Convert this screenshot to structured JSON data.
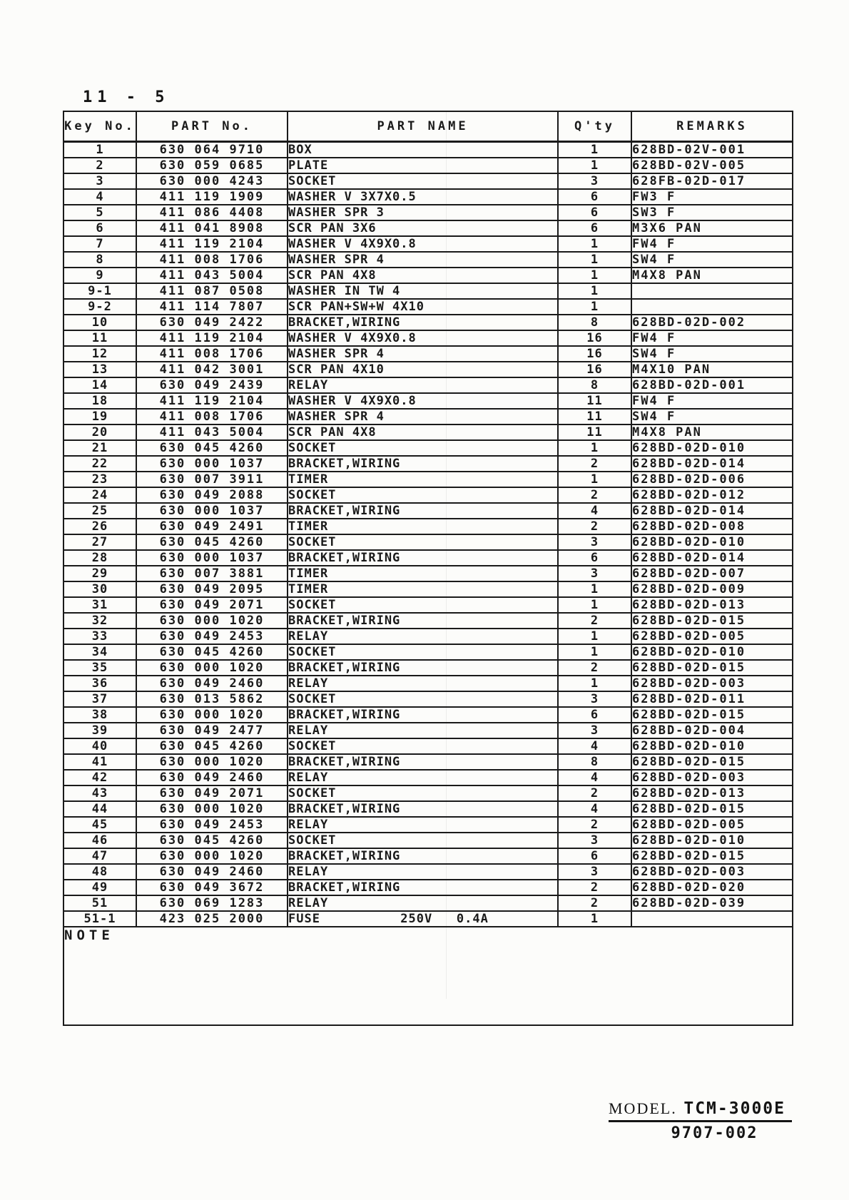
{
  "page": {
    "page_number": "11 - 5",
    "note_label": "NOTE",
    "footer": {
      "model_label": "MODEL.",
      "model_value": "TCM-3000E",
      "doc_number": "9707-002"
    },
    "ink_color": "#1a1a1a",
    "paper_color": "#fcfcfa"
  },
  "table": {
    "columns": [
      "Key No.",
      "PART No.",
      "PART NAME",
      "Q'ty",
      "REMARKS"
    ],
    "rows": [
      {
        "key": "1",
        "part_no": "630 064 9710",
        "part_name": "BOX",
        "qty": "1",
        "remarks": "628BD-02V-001"
      },
      {
        "key": "2",
        "part_no": "630 059 0685",
        "part_name": "PLATE",
        "qty": "1",
        "remarks": "628BD-02V-005"
      },
      {
        "key": "3",
        "part_no": "630 000 4243",
        "part_name": "SOCKET",
        "qty": "3",
        "remarks": "628FB-02D-017"
      },
      {
        "key": "4",
        "part_no": "411 119 1909",
        "part_name": "WASHER V 3X7X0.5",
        "qty": "6",
        "remarks": "FW3 F"
      },
      {
        "key": "5",
        "part_no": "411 086 4408",
        "part_name": "WASHER SPR 3",
        "qty": "6",
        "remarks": "SW3 F"
      },
      {
        "key": "6",
        "part_no": "411 041 8908",
        "part_name": "SCR PAN 3X6",
        "qty": "6",
        "remarks": "M3X6 PAN"
      },
      {
        "key": "7",
        "part_no": "411 119 2104",
        "part_name": "WASHER V 4X9X0.8",
        "qty": "1",
        "remarks": "FW4 F"
      },
      {
        "key": "8",
        "part_no": "411 008 1706",
        "part_name": "WASHER SPR 4",
        "qty": "1",
        "remarks": "SW4 F"
      },
      {
        "key": "9",
        "part_no": "411 043 5004",
        "part_name": "SCR PAN 4X8",
        "qty": "1",
        "remarks": "M4X8 PAN"
      },
      {
        "key": "9-1",
        "part_no": "411 087 0508",
        "part_name": "WASHER IN TW 4",
        "qty": "1",
        "remarks": ""
      },
      {
        "key": "9-2",
        "part_no": "411 114 7807",
        "part_name": "SCR PAN+SW+W 4X10",
        "qty": "1",
        "remarks": ""
      },
      {
        "key": "10",
        "part_no": "630 049 2422",
        "part_name": "BRACKET,WIRING",
        "qty": "8",
        "remarks": "628BD-02D-002"
      },
      {
        "key": "11",
        "part_no": "411 119 2104",
        "part_name": "WASHER V 4X9X0.8",
        "qty": "16",
        "remarks": "FW4 F"
      },
      {
        "key": "12",
        "part_no": "411 008 1706",
        "part_name": "WASHER SPR 4",
        "qty": "16",
        "remarks": "SW4 F"
      },
      {
        "key": "13",
        "part_no": "411 042 3001",
        "part_name": "SCR PAN 4X10",
        "qty": "16",
        "remarks": "M4X10 PAN"
      },
      {
        "key": "14",
        "part_no": "630 049 2439",
        "part_name": "RELAY",
        "qty": "8",
        "remarks": "628BD-02D-001"
      },
      {
        "key": "18",
        "part_no": "411 119 2104",
        "part_name": "WASHER V 4X9X0.8",
        "qty": "11",
        "remarks": "FW4 F"
      },
      {
        "key": "19",
        "part_no": "411 008 1706",
        "part_name": "WASHER SPR 4",
        "qty": "11",
        "remarks": "SW4 F"
      },
      {
        "key": "20",
        "part_no": "411 043 5004",
        "part_name": "SCR PAN 4X8",
        "qty": "11",
        "remarks": "M4X8 PAN"
      },
      {
        "key": "21",
        "part_no": "630 045 4260",
        "part_name": "SOCKET",
        "qty": "1",
        "remarks": "628BD-02D-010"
      },
      {
        "key": "22",
        "part_no": "630 000 1037",
        "part_name": "BRACKET,WIRING",
        "qty": "2",
        "remarks": "628BD-02D-014"
      },
      {
        "key": "23",
        "part_no": "630 007 3911",
        "part_name": "TIMER",
        "qty": "1",
        "remarks": "628BD-02D-006"
      },
      {
        "key": "24",
        "part_no": "630 049 2088",
        "part_name": "SOCKET",
        "qty": "2",
        "remarks": "628BD-02D-012"
      },
      {
        "key": "25",
        "part_no": "630 000 1037",
        "part_name": "BRACKET,WIRING",
        "qty": "4",
        "remarks": "628BD-02D-014"
      },
      {
        "key": "26",
        "part_no": "630 049 2491",
        "part_name": "TIMER",
        "qty": "2",
        "remarks": "628BD-02D-008"
      },
      {
        "key": "27",
        "part_no": "630 045 4260",
        "part_name": "SOCKET",
        "qty": "3",
        "remarks": "628BD-02D-010"
      },
      {
        "key": "28",
        "part_no": "630 000 1037",
        "part_name": "BRACKET,WIRING",
        "qty": "6",
        "remarks": "628BD-02D-014"
      },
      {
        "key": "29",
        "part_no": "630 007 3881",
        "part_name": "TIMER",
        "qty": "3",
        "remarks": "628BD-02D-007"
      },
      {
        "key": "30",
        "part_no": "630 049 2095",
        "part_name": "TIMER",
        "qty": "1",
        "remarks": "628BD-02D-009"
      },
      {
        "key": "31",
        "part_no": "630 049 2071",
        "part_name": "SOCKET",
        "qty": "1",
        "remarks": "628BD-02D-013"
      },
      {
        "key": "32",
        "part_no": "630 000 1020",
        "part_name": "BRACKET,WIRING",
        "qty": "2",
        "remarks": "628BD-02D-015"
      },
      {
        "key": "33",
        "part_no": "630 049 2453",
        "part_name": "RELAY",
        "qty": "1",
        "remarks": "628BD-02D-005"
      },
      {
        "key": "34",
        "part_no": "630 045 4260",
        "part_name": "SOCKET",
        "qty": "1",
        "remarks": "628BD-02D-010"
      },
      {
        "key": "35",
        "part_no": "630 000 1020",
        "part_name": "BRACKET,WIRING",
        "qty": "2",
        "remarks": "628BD-02D-015"
      },
      {
        "key": "36",
        "part_no": "630 049 2460",
        "part_name": "RELAY",
        "qty": "1",
        "remarks": "628BD-02D-003"
      },
      {
        "key": "37",
        "part_no": "630 013 5862",
        "part_name": "SOCKET",
        "qty": "3",
        "remarks": "628BD-02D-011"
      },
      {
        "key": "38",
        "part_no": "630 000 1020",
        "part_name": "BRACKET,WIRING",
        "qty": "6",
        "remarks": "628BD-02D-015"
      },
      {
        "key": "39",
        "part_no": "630 049 2477",
        "part_name": "RELAY",
        "qty": "3",
        "remarks": "628BD-02D-004"
      },
      {
        "key": "40",
        "part_no": "630 045 4260",
        "part_name": "SOCKET",
        "qty": "4",
        "remarks": "628BD-02D-010"
      },
      {
        "key": "41",
        "part_no": "630 000 1020",
        "part_name": "BRACKET,WIRING",
        "qty": "8",
        "remarks": "628BD-02D-015"
      },
      {
        "key": "42",
        "part_no": "630 049 2460",
        "part_name": "RELAY",
        "qty": "4",
        "remarks": "628BD-02D-003"
      },
      {
        "key": "43",
        "part_no": "630 049 2071",
        "part_name": "SOCKET",
        "qty": "2",
        "remarks": "628BD-02D-013"
      },
      {
        "key": "44",
        "part_no": "630 000 1020",
        "part_name": "BRACKET,WIRING",
        "qty": "4",
        "remarks": "628BD-02D-015"
      },
      {
        "key": "45",
        "part_no": "630 049 2453",
        "part_name": "RELAY",
        "qty": "2",
        "remarks": "628BD-02D-005"
      },
      {
        "key": "46",
        "part_no": "630 045 4260",
        "part_name": "SOCKET",
        "qty": "3",
        "remarks": "628BD-02D-010"
      },
      {
        "key": "47",
        "part_no": "630 000 1020",
        "part_name": "BRACKET,WIRING",
        "qty": "6",
        "remarks": "628BD-02D-015"
      },
      {
        "key": "48",
        "part_no": "630 049 2460",
        "part_name": "RELAY",
        "qty": "3",
        "remarks": "628BD-02D-003"
      },
      {
        "key": "49",
        "part_no": "630 049 3672",
        "part_name": "BRACKET,WIRING",
        "qty": "2",
        "remarks": "628BD-02D-020"
      },
      {
        "key": "51",
        "part_no": "630 069 1283",
        "part_name": "RELAY",
        "qty": "2",
        "remarks": "628BD-02D-039"
      },
      {
        "key": "51-1",
        "part_no": "423 025 2000",
        "part_name": "FUSE          250V   0.4A",
        "qty": "1",
        "remarks": ""
      }
    ]
  }
}
